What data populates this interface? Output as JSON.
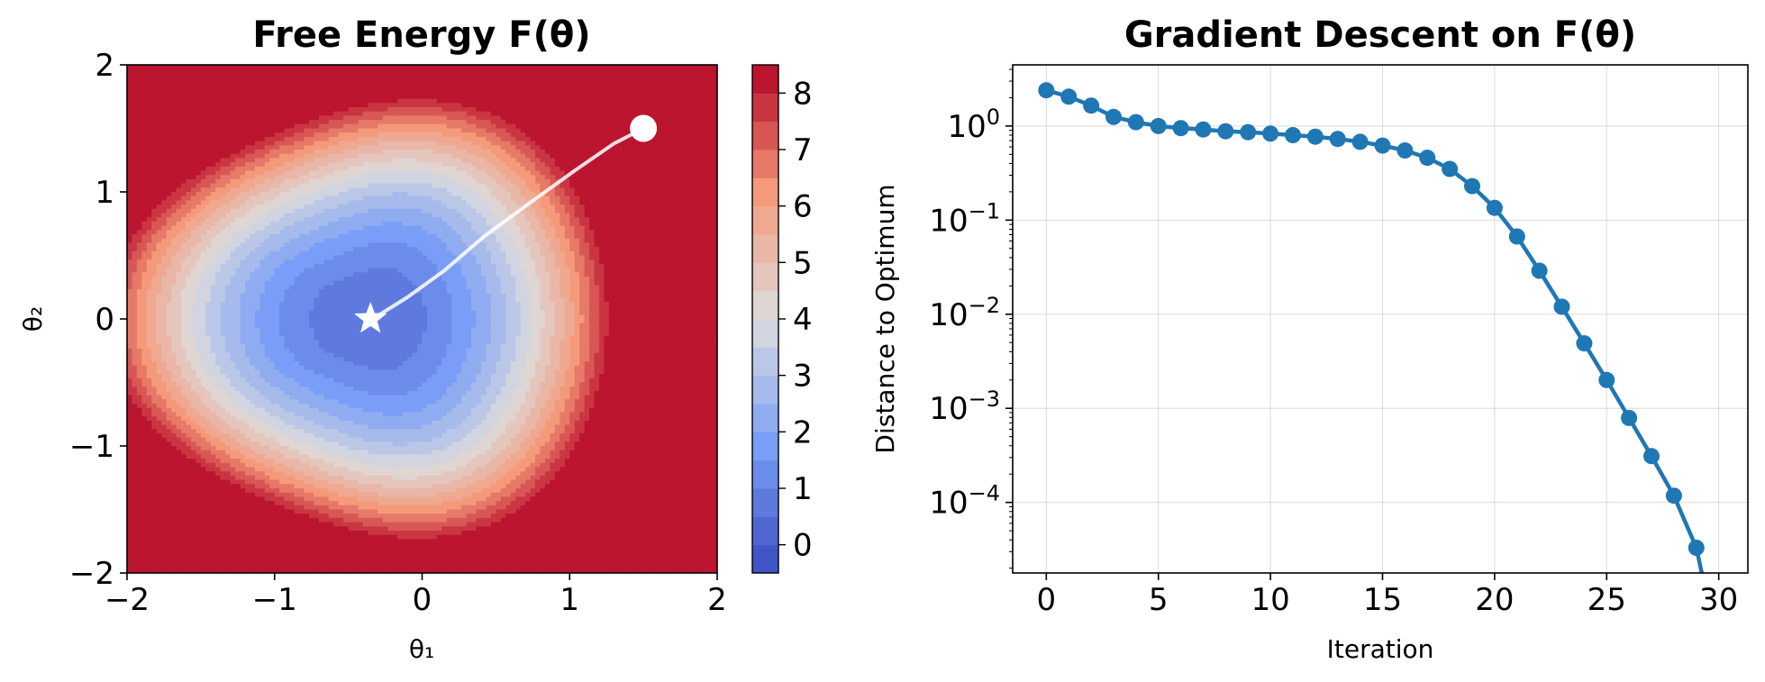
{
  "chart_data": [
    {
      "type": "heatmap",
      "title": "Free Energy F(θ)",
      "xlabel": "θ₁",
      "ylabel": "θ₂",
      "xlim": [
        -2,
        2
      ],
      "ylim": [
        -2,
        2
      ],
      "xticks": [
        {
          "v": -2,
          "label": "−2"
        },
        {
          "v": -1,
          "label": "−1"
        },
        {
          "v": 0,
          "label": "0"
        },
        {
          "v": 1,
          "label": "1"
        },
        {
          "v": 2,
          "label": "2"
        }
      ],
      "yticks": [
        {
          "v": -2,
          "label": "−2"
        },
        {
          "v": -1,
          "label": "−1"
        },
        {
          "v": 0,
          "label": "0"
        },
        {
          "v": 1,
          "label": "1"
        },
        {
          "v": 2,
          "label": "2"
        }
      ],
      "colormap": "coolwarm",
      "colorbar": {
        "range": [
          -0.5,
          8.5
        ],
        "ticks": [
          {
            "v": 0,
            "label": "0"
          },
          {
            "v": 1,
            "label": "1"
          },
          {
            "v": 2,
            "label": "2"
          },
          {
            "v": 3,
            "label": "3"
          },
          {
            "v": 4,
            "label": "4"
          },
          {
            "v": 5,
            "label": "5"
          },
          {
            "v": 6,
            "label": "6"
          },
          {
            "v": 7,
            "label": "7"
          },
          {
            "v": 8,
            "label": "8"
          }
        ],
        "levels": 18
      },
      "minimum": {
        "x": -0.35,
        "y": 0.0,
        "marker": "star"
      },
      "start": {
        "x": 1.5,
        "y": 1.5,
        "marker": "circle"
      },
      "path": [
        [
          1.5,
          1.5
        ],
        [
          1.3,
          1.38
        ],
        [
          1.05,
          1.18
        ],
        [
          0.75,
          0.93
        ],
        [
          0.42,
          0.65
        ],
        [
          0.15,
          0.38
        ],
        [
          -0.1,
          0.17
        ],
        [
          -0.28,
          0.04
        ],
        [
          -0.35,
          0.0
        ]
      ]
    },
    {
      "type": "line",
      "title": "Gradient Descent on F(θ)",
      "xlabel": "Iteration",
      "ylabel": "Distance to Optimum",
      "yscale": "log",
      "xlim": [
        -1.5,
        31.3
      ],
      "ylim_log10": [
        -4.75,
        0.65
      ],
      "xticks": [
        {
          "v": 0,
          "label": "0"
        },
        {
          "v": 5,
          "label": "5"
        },
        {
          "v": 10,
          "label": "10"
        },
        {
          "v": 15,
          "label": "15"
        },
        {
          "v": 20,
          "label": "20"
        },
        {
          "v": 25,
          "label": "25"
        },
        {
          "v": 30,
          "label": "30"
        }
      ],
      "yticks": [
        {
          "v": 0,
          "base": "10",
          "exp": "0"
        },
        {
          "v": -1,
          "base": "10",
          "exp": "−1"
        },
        {
          "v": -2,
          "base": "10",
          "exp": "−2"
        },
        {
          "v": -3,
          "base": "10",
          "exp": "−3"
        },
        {
          "v": -4,
          "base": "10",
          "exp": "−4"
        }
      ],
      "grid": true,
      "x": [
        0,
        1,
        2,
        3,
        4,
        5,
        6,
        7,
        8,
        9,
        10,
        11,
        12,
        13,
        14,
        15,
        16,
        17,
        18,
        19,
        20,
        21,
        22,
        23,
        24,
        25,
        26,
        27,
        28,
        29
      ],
      "y": [
        2.4,
        2.05,
        1.65,
        1.25,
        1.1,
        1.0,
        0.95,
        0.92,
        0.88,
        0.86,
        0.83,
        0.8,
        0.77,
        0.73,
        0.68,
        0.62,
        0.55,
        0.46,
        0.35,
        0.23,
        0.135,
        0.067,
        0.029,
        0.012,
        0.0049,
        0.002,
        0.00079,
        0.00031,
        0.000118,
        3.3e-05
      ],
      "color": "#1f77b4"
    }
  ]
}
